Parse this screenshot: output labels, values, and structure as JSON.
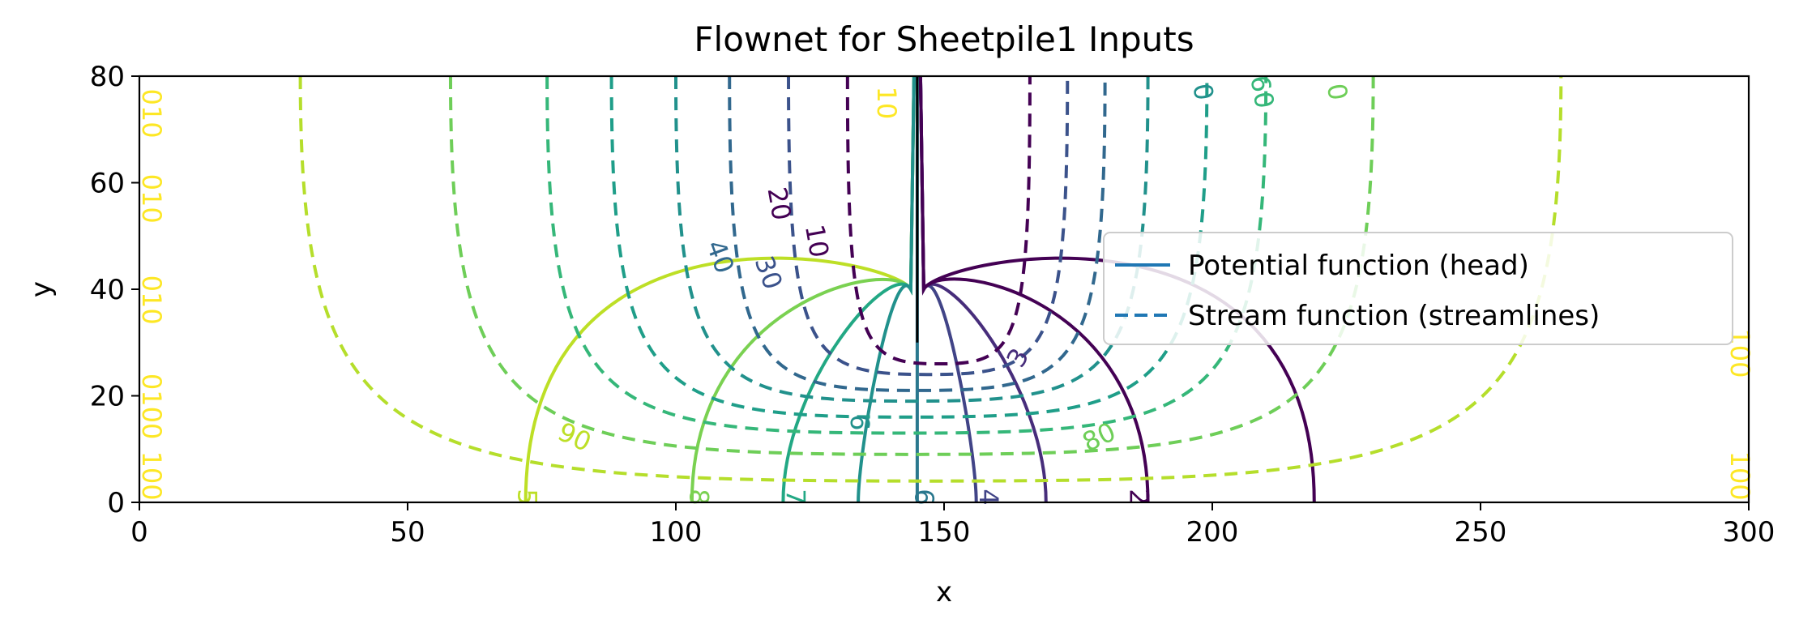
{
  "chart_data": {
    "type": "contour",
    "title": "Flownet for Sheetpile1 Inputs",
    "xlabel": "x",
    "ylabel": "y",
    "xlim": [
      0,
      300
    ],
    "ylim": [
      0,
      80
    ],
    "xticks": [
      "0",
      "50",
      "100",
      "150",
      "200",
      "250",
      "300"
    ],
    "yticks": [
      "0",
      "20",
      "40",
      "60",
      "80"
    ],
    "legend": {
      "placement": "center-right",
      "entries": [
        {
          "label": "Potential function (head)",
          "style": "solid",
          "color": "#1f77b4"
        },
        {
          "label": "Stream function (streamlines)",
          "style": "dashed",
          "color": "#1f77b4"
        }
      ]
    },
    "sheetpile": {
      "x": 145,
      "y_bottom": 30,
      "y_top": 80
    },
    "potential_lines": [
      {
        "x_base": 72,
        "color": "#bddf26"
      },
      {
        "x_base": 103,
        "color": "#7ad151"
      },
      {
        "x_base": 120,
        "color": "#22a884"
      },
      {
        "x_base": 134,
        "color": "#21918c"
      },
      {
        "x_base": 145,
        "color": "#2a788e"
      },
      {
        "x_base": 156,
        "color": "#414487"
      },
      {
        "x_base": 169,
        "color": "#472d7b"
      },
      {
        "x_base": 188,
        "color": "#440154"
      },
      {
        "x_base": 219,
        "color": "#440154"
      }
    ],
    "stream_lines": [
      {
        "x_left": 132,
        "x_right": 166,
        "y_bottom": 26,
        "color": "#440154"
      },
      {
        "x_left": 121,
        "x_right": 173,
        "y_bottom": 24,
        "color": "#3b528b"
      },
      {
        "x_left": 110,
        "x_right": 180,
        "y_bottom": 21,
        "color": "#31688e"
      },
      {
        "x_left": 100,
        "x_right": 188,
        "y_bottom": 19,
        "color": "#21918c"
      },
      {
        "x_left": 88,
        "x_right": 199,
        "y_bottom": 16,
        "color": "#1f9e89"
      },
      {
        "x_left": 76,
        "x_right": 210,
        "y_bottom": 13,
        "color": "#35b779"
      },
      {
        "x_left": 58,
        "x_right": 230,
        "y_bottom": 9,
        "color": "#6ece58"
      },
      {
        "x_left": 30,
        "x_right": 265,
        "y_bottom": 4,
        "color": "#b5de2b"
      }
    ],
    "contour_labels": [
      {
        "text": "90",
        "x": 81,
        "y": 12,
        "rot": 25,
        "color": "#bddf26"
      },
      {
        "text": "80",
        "x": 179,
        "y": 12,
        "rot": -25,
        "color": "#6ece58"
      },
      {
        "text": "40",
        "x": 108,
        "y": 46,
        "rot": 70,
        "color": "#31688e"
      },
      {
        "text": "30",
        "x": 117,
        "y": 43,
        "rot": 70,
        "color": "#3b528b"
      },
      {
        "text": "20",
        "x": 119,
        "y": 56,
        "rot": 80,
        "color": "#440154"
      },
      {
        "text": "10",
        "x": 126,
        "y": 49,
        "rot": 80,
        "color": "#440154"
      },
      {
        "text": "0",
        "x": 198,
        "y": 77,
        "rot": 80,
        "color": "#21918c"
      },
      {
        "text": "60",
        "x": 209,
        "y": 77,
        "rot": 80,
        "color": "#35b779"
      },
      {
        "text": "0",
        "x": 223,
        "y": 77,
        "rot": 80,
        "color": "#6ece58"
      },
      {
        "text": "10",
        "x": 139,
        "y": 75,
        "rot": 90,
        "color": "#fde725"
      },
      {
        "text": "6",
        "x": 134,
        "y": 15,
        "rot": 90,
        "color": "#21918c"
      },
      {
        "text": "3",
        "x": 164,
        "y": 27,
        "rot": -60,
        "color": "#472d7b"
      },
      {
        "text": "5",
        "x": 72,
        "y": 1,
        "rot": 90,
        "color": "#bddf26"
      },
      {
        "text": "8",
        "x": 104,
        "y": 1,
        "rot": 90,
        "color": "#7ad151"
      },
      {
        "text": "7",
        "x": 122,
        "y": 1,
        "rot": 90,
        "color": "#22a884"
      },
      {
        "text": "6",
        "x": 146,
        "y": 1,
        "rot": 90,
        "color": "#2a788e"
      },
      {
        "text": "4",
        "x": 158,
        "y": 1,
        "rot": 90,
        "color": "#414487"
      },
      {
        "text": "2",
        "x": 186,
        "y": 1,
        "rot": 90,
        "color": "#440154"
      },
      {
        "text": "010",
        "x": 2,
        "y": 73,
        "rot": 90,
        "color": "#fde725"
      },
      {
        "text": "010",
        "x": 2,
        "y": 57,
        "rot": 90,
        "color": "#fde725"
      },
      {
        "text": "010",
        "x": 2,
        "y": 38,
        "rot": 90,
        "color": "#fde725"
      },
      {
        "text": "0100",
        "x": 2,
        "y": 18,
        "rot": 90,
        "color": "#fde725"
      },
      {
        "text": "100",
        "x": 2,
        "y": 5,
        "rot": 90,
        "color": "#fde725"
      },
      {
        "text": "100",
        "x": 298,
        "y": 28,
        "rot": 90,
        "color": "#fde725"
      },
      {
        "text": "100",
        "x": 298,
        "y": 5,
        "rot": 90,
        "color": "#fde725"
      }
    ]
  }
}
